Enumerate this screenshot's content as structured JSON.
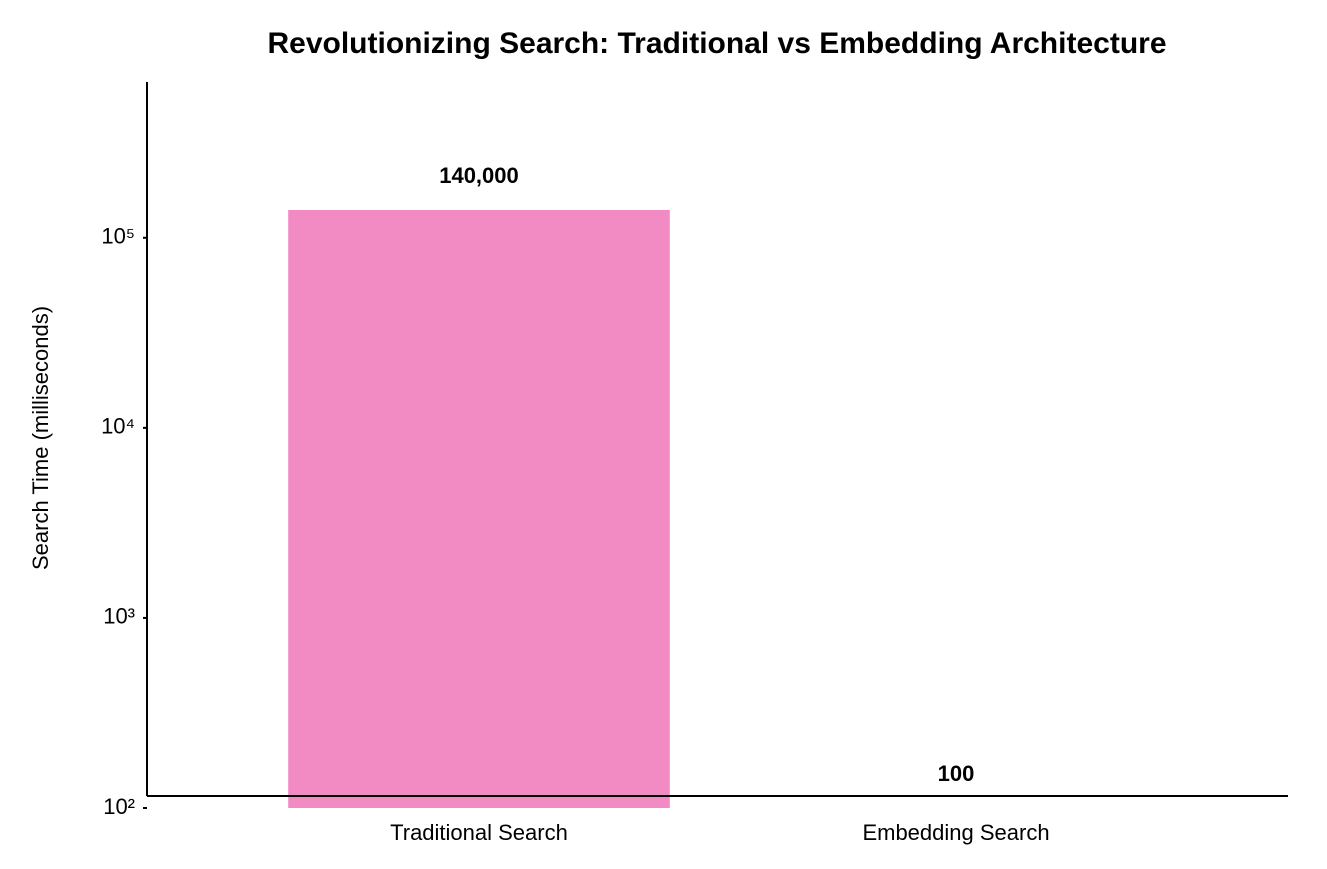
{
  "chart_data": {
    "type": "bar",
    "title": "Revolutionizing Search: Traditional vs Embedding Architecture",
    "y_label": "Search Time (milliseconds)",
    "categories": [
      "Traditional Search",
      "Embedding Search"
    ],
    "series": [
      {
        "name": "Search Time",
        "colors": [
          "#f28bc4",
          "#63c3bd"
        ],
        "values": [
          140000,
          100
        ],
        "value_labels": [
          "140,000",
          "100"
        ]
      }
    ],
    "log_scale": true,
    "ylim": [
      100,
      660000
    ],
    "yticks": [
      {
        "value": 100,
        "label": "10²"
      },
      {
        "value": 1000,
        "label": "10³"
      },
      {
        "value": 10000,
        "label": "10⁴"
      },
      {
        "value": 100000,
        "label": "10⁵"
      }
    ],
    "grid": false
  }
}
